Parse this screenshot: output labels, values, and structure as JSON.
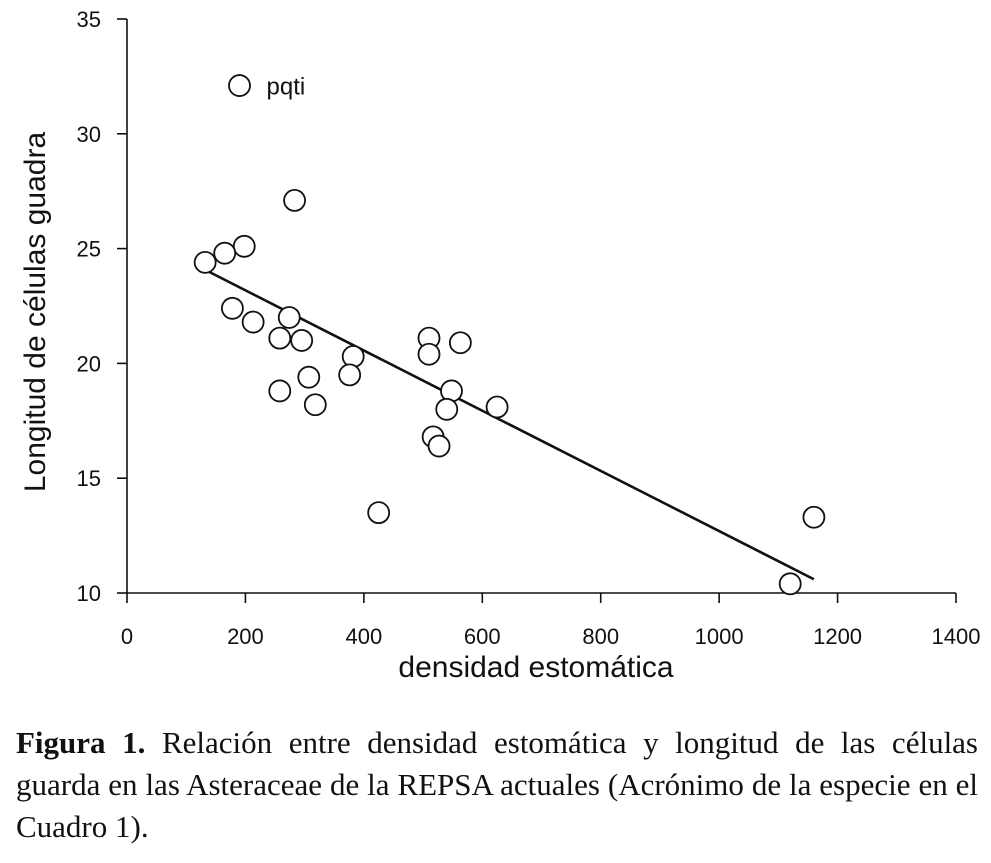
{
  "chart_data": {
    "type": "scatter",
    "xlabel": "densidad estomática",
    "ylabel": "Longitud de células guadra",
    "xlim": [
      0,
      1400
    ],
    "ylim": [
      10,
      35
    ],
    "xticks": [
      0,
      200,
      400,
      600,
      800,
      1000,
      1200,
      1400
    ],
    "yticks": [
      10,
      15,
      20,
      25,
      30,
      35
    ],
    "points": [
      {
        "x": 190,
        "y": 32.1,
        "label": "pqti"
      },
      {
        "x": 283,
        "y": 27.1
      },
      {
        "x": 198,
        "y": 25.1
      },
      {
        "x": 165,
        "y": 24.8
      },
      {
        "x": 132,
        "y": 24.4
      },
      {
        "x": 178,
        "y": 22.4
      },
      {
        "x": 213,
        "y": 21.8
      },
      {
        "x": 274,
        "y": 22.0
      },
      {
        "x": 258,
        "y": 21.1
      },
      {
        "x": 295,
        "y": 21.0
      },
      {
        "x": 382,
        "y": 20.3
      },
      {
        "x": 376,
        "y": 19.5
      },
      {
        "x": 307,
        "y": 19.4
      },
      {
        "x": 258,
        "y": 18.8
      },
      {
        "x": 318,
        "y": 18.2
      },
      {
        "x": 425,
        "y": 13.5
      },
      {
        "x": 510,
        "y": 21.1
      },
      {
        "x": 510,
        "y": 20.4
      },
      {
        "x": 563,
        "y": 20.9
      },
      {
        "x": 548,
        "y": 18.8
      },
      {
        "x": 540,
        "y": 18.0
      },
      {
        "x": 625,
        "y": 18.1
      },
      {
        "x": 517,
        "y": 16.8
      },
      {
        "x": 527,
        "y": 16.4
      },
      {
        "x": 1160,
        "y": 13.3
      },
      {
        "x": 1120,
        "y": 10.4
      }
    ],
    "trendline": {
      "x": [
        130,
        1160
      ],
      "y": [
        24.1,
        10.6
      ]
    }
  },
  "caption": {
    "label": "Figura 1.",
    "text": "Relación entre densidad estomática y longitud de las células guarda en las Asteraceae de la REPSA actuales (Acrónimo de la especie en el Cuadro 1)."
  }
}
